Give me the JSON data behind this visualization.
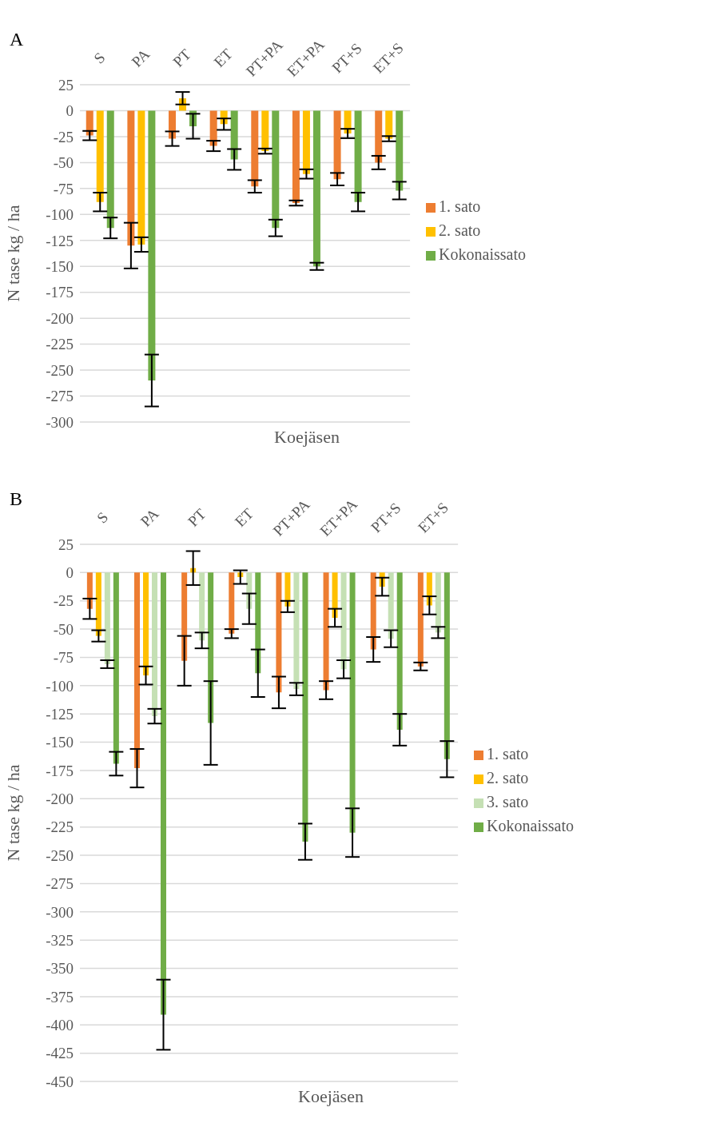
{
  "chart_data": [
    {
      "type": "bar",
      "title": "A",
      "xlabel": "Koejäsen",
      "ylabel": "N tase kg / ha",
      "categories": [
        "S",
        "PA",
        "PT",
        "ET",
        "PT+PA",
        "ET+PA",
        "PT+S",
        "ET+S"
      ],
      "series": [
        {
          "name": "1. sato",
          "color": "#ed7d31",
          "values": [
            -24,
            -130,
            -27,
            -34,
            -73,
            -89,
            -66,
            -50
          ],
          "errors": [
            4.5,
            22,
            7,
            5,
            6,
            2.5,
            6,
            6.5
          ]
        },
        {
          "name": "2. sato",
          "color": "#ffc000",
          "values": [
            -88,
            -129,
            12,
            -13,
            -39,
            -61,
            -22,
            -27
          ],
          "errors": [
            9,
            7,
            6,
            5.5,
            2.5,
            4.5,
            4.5,
            2.5
          ]
        },
        {
          "name": "Kokonaissato",
          "color": "#70ad47",
          "values": [
            -113,
            -260,
            -15,
            -47,
            -113,
            -150,
            -88,
            -77
          ],
          "errors": [
            10,
            25,
            12,
            10,
            8,
            3.5,
            9,
            8.5
          ]
        }
      ],
      "ylim": [
        -300,
        25
      ],
      "yticks": [
        25,
        0,
        -25,
        -50,
        -75,
        -100,
        -125,
        -150,
        -175,
        -200,
        -225,
        -250,
        -275,
        -300
      ],
      "grid": "y",
      "legend": "right"
    },
    {
      "type": "bar",
      "title": "B",
      "xlabel": "Koejäsen",
      "ylabel": "N tase kg / ha",
      "categories": [
        "S",
        "PA",
        "PT",
        "ET",
        "PT+PA",
        "ET+PA",
        "PT+S",
        "ET+S"
      ],
      "series": [
        {
          "name": "1. sato",
          "color": "#ed7d31",
          "values": [
            -32,
            -173,
            -78,
            -54,
            -106,
            -104,
            -68,
            -83
          ],
          "errors": [
            9,
            17,
            22,
            4,
            14,
            8,
            11,
            3.5
          ]
        },
        {
          "name": "2. sato",
          "color": "#ffc000",
          "values": [
            -56,
            -91,
            4,
            -4,
            -30,
            -40,
            -12.5,
            -29
          ],
          "errors": [
            5,
            8,
            15,
            6,
            5,
            8,
            8,
            8
          ]
        },
        {
          "name": "3. sato",
          "color": "#c5e0b4",
          "values": [
            -81,
            -127,
            -60,
            -32,
            -103,
            -85.5,
            -58.5,
            -53
          ],
          "errors": [
            3.5,
            6.5,
            7,
            13.5,
            5.5,
            8,
            7.5,
            5
          ]
        },
        {
          "name": "Kokonaissato",
          "color": "#70ad47",
          "values": [
            -169,
            -391,
            -133,
            -89,
            -238,
            -230,
            -139,
            -165
          ],
          "errors": [
            10.5,
            31,
            37,
            21,
            16,
            21.5,
            14,
            16
          ]
        }
      ],
      "ylim": [
        -450,
        25
      ],
      "yticks": [
        25,
        0,
        -25,
        -50,
        -75,
        -100,
        -125,
        -150,
        -175,
        -200,
        -225,
        -250,
        -275,
        -300,
        -325,
        -350,
        -375,
        -400,
        -425,
        -450
      ],
      "grid": "y",
      "legend": "right"
    }
  ]
}
